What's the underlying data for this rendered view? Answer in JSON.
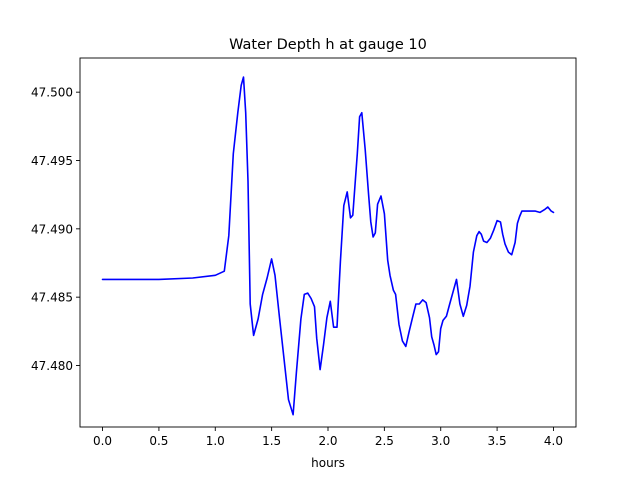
{
  "chart_data": {
    "type": "line",
    "title": "Water Depth h at gauge 10",
    "xlabel": "hours",
    "ylabel": "",
    "xlim": [
      -0.2,
      4.2
    ],
    "ylim": [
      47.4755,
      47.5025
    ],
    "grid": false,
    "legend": "none",
    "xticks": [
      0.0,
      0.5,
      1.0,
      1.5,
      2.0,
      2.5,
      3.0,
      3.5,
      4.0
    ],
    "xtick_labels": [
      "0.0",
      "0.5",
      "1.0",
      "1.5",
      "2.0",
      "2.5",
      "3.0",
      "3.5",
      "4.0"
    ],
    "yticks": [
      47.48,
      47.485,
      47.49,
      47.495,
      47.5
    ],
    "ytick_labels": [
      "47.480",
      "47.485",
      "47.490",
      "47.495",
      "47.500"
    ],
    "series": [
      {
        "color": "#0000ff",
        "x": [
          0.0,
          0.5,
          0.8,
          1.0,
          1.08,
          1.12,
          1.16,
          1.2,
          1.23,
          1.25,
          1.27,
          1.29,
          1.31,
          1.34,
          1.38,
          1.42,
          1.46,
          1.5,
          1.53,
          1.57,
          1.61,
          1.65,
          1.69,
          1.72,
          1.76,
          1.79,
          1.82,
          1.85,
          1.88,
          1.9,
          1.93,
          1.96,
          1.99,
          2.02,
          2.05,
          2.08,
          2.11,
          2.14,
          2.17,
          2.2,
          2.22,
          2.24,
          2.26,
          2.28,
          2.3,
          2.33,
          2.36,
          2.38,
          2.4,
          2.42,
          2.44,
          2.47,
          2.5,
          2.53,
          2.55,
          2.58,
          2.6,
          2.63,
          2.66,
          2.69,
          2.72,
          2.75,
          2.78,
          2.81,
          2.84,
          2.87,
          2.9,
          2.92,
          2.94,
          2.96,
          2.98,
          3.0,
          3.02,
          3.05,
          3.08,
          3.11,
          3.14,
          3.17,
          3.2,
          3.23,
          3.26,
          3.29,
          3.32,
          3.34,
          3.36,
          3.38,
          3.41,
          3.44,
          3.47,
          3.5,
          3.53,
          3.55,
          3.57,
          3.6,
          3.63,
          3.66,
          3.68,
          3.7,
          3.72,
          3.75,
          3.78,
          3.81,
          3.84,
          3.88,
          3.92,
          3.95,
          3.98,
          4.0
        ],
        "y": [
          47.4863,
          47.4863,
          47.4864,
          47.4866,
          47.4869,
          47.4895,
          47.4955,
          47.4985,
          47.5005,
          47.5011,
          47.4985,
          47.4935,
          47.4845,
          47.4822,
          47.4834,
          47.4852,
          47.4864,
          47.4878,
          47.4866,
          47.4835,
          47.4805,
          47.4775,
          47.4764,
          47.4795,
          47.4834,
          47.4852,
          47.4853,
          47.4849,
          47.4843,
          47.482,
          47.4797,
          47.4815,
          47.4835,
          47.4847,
          47.4828,
          47.4828,
          47.4876,
          47.4917,
          47.4927,
          47.4908,
          47.491,
          47.4933,
          47.4955,
          47.4982,
          47.4985,
          47.4958,
          47.4925,
          47.4905,
          47.4894,
          47.4897,
          47.4918,
          47.4924,
          47.4911,
          47.4877,
          47.4866,
          47.4855,
          47.4852,
          47.483,
          47.4818,
          47.4814,
          47.4825,
          47.4835,
          47.4845,
          47.4845,
          47.4848,
          47.4846,
          47.4835,
          47.4821,
          47.4815,
          47.4808,
          47.481,
          47.4827,
          47.4833,
          47.4836,
          47.4845,
          47.4854,
          47.4863,
          47.4845,
          47.4836,
          47.4844,
          47.4858,
          47.4883,
          47.4895,
          47.4898,
          47.4896,
          47.4891,
          47.489,
          47.4893,
          47.4899,
          47.4906,
          47.4905,
          47.4896,
          47.4889,
          47.4883,
          47.4881,
          47.489,
          47.4904,
          47.4909,
          47.4913,
          47.4913,
          47.4913,
          47.4913,
          47.4913,
          47.4912,
          47.4914,
          47.4916,
          47.4913,
          47.4912
        ]
      }
    ]
  }
}
